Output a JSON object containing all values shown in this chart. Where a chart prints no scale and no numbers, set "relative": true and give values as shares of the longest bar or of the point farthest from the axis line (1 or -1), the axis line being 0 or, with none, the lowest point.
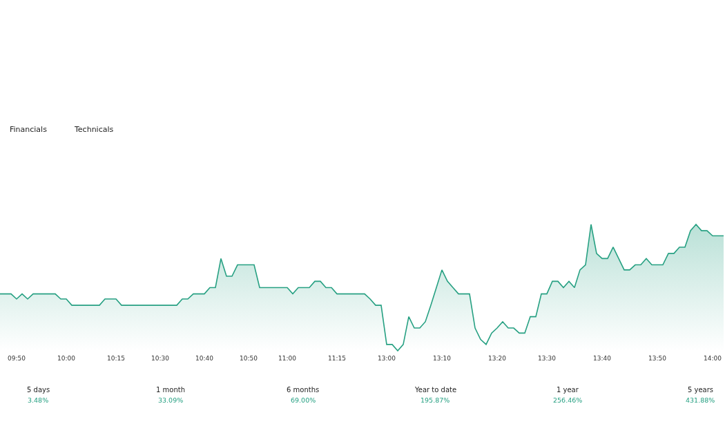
{
  "chart_data": {
    "type": "area",
    "relative": true,
    "color": "#26a082",
    "line_style": "solid",
    "tick_labels": "x",
    "categories": [
      null,
      null,
      null,
      "09:50",
      null,
      null,
      null,
      null,
      null,
      null,
      null,
      null,
      "10:00",
      null,
      null,
      null,
      null,
      null,
      null,
      null,
      null,
      "10:15",
      null,
      null,
      null,
      null,
      null,
      null,
      null,
      "10:30",
      null,
      null,
      null,
      null,
      null,
      null,
      null,
      "10:40",
      null,
      null,
      null,
      null,
      null,
      null,
      null,
      "10:50",
      null,
      null,
      null,
      null,
      null,
      null,
      "11:00",
      null,
      null,
      null,
      null,
      null,
      null,
      null,
      null,
      "11:15",
      null,
      null,
      null,
      null,
      null,
      null,
      null,
      null,
      "13:00",
      null,
      null,
      null,
      null,
      null,
      null,
      null,
      null,
      null,
      "13:10",
      null,
      null,
      null,
      null,
      null,
      null,
      null,
      null,
      null,
      "13:20",
      null,
      null,
      null,
      null,
      null,
      null,
      null,
      null,
      "13:30",
      null,
      null,
      null,
      null,
      null,
      null,
      null,
      null,
      null,
      "13:40",
      null,
      null,
      null,
      null,
      null,
      null,
      null,
      null,
      null,
      "13:50",
      null,
      null,
      null,
      null,
      null,
      null,
      null,
      null,
      null,
      "14:00",
      null,
      null
    ],
    "values": [
      0.45,
      0.45,
      0.45,
      0.41,
      0.45,
      0.41,
      0.45,
      0.45,
      0.45,
      0.45,
      0.45,
      0.41,
      0.41,
      0.36,
      0.36,
      0.36,
      0.36,
      0.36,
      0.36,
      0.41,
      0.41,
      0.41,
      0.36,
      0.36,
      0.36,
      0.36,
      0.36,
      0.36,
      0.36,
      0.36,
      0.36,
      0.36,
      0.36,
      0.41,
      0.41,
      0.45,
      0.45,
      0.45,
      0.5,
      0.5,
      0.73,
      0.59,
      0.59,
      0.68,
      0.68,
      0.68,
      0.68,
      0.5,
      0.5,
      0.5,
      0.5,
      0.5,
      0.5,
      0.45,
      0.5,
      0.5,
      0.5,
      0.55,
      0.55,
      0.5,
      0.5,
      0.45,
      0.45,
      0.45,
      0.45,
      0.45,
      0.45,
      0.41,
      0.36,
      0.36,
      0.05,
      0.05,
      0,
      0.05,
      0.27,
      0.18,
      0.18,
      0.23,
      0.36,
      0.5,
      0.64,
      0.55,
      0.5,
      0.45,
      0.45,
      0.45,
      0.18,
      0.09,
      0.05,
      0.14,
      0.18,
      0.23,
      0.18,
      0.18,
      0.14,
      0.14,
      0.27,
      0.27,
      0.45,
      0.45,
      0.55,
      0.55,
      0.5,
      0.55,
      0.5,
      0.64,
      0.68,
      1,
      0.77,
      0.73,
      0.73,
      0.82,
      0.73,
      0.64,
      0.64,
      0.68,
      0.68,
      0.73,
      0.68,
      0.68,
      0.68,
      0.77,
      0.77,
      0.82,
      0.82,
      0.95,
      1,
      0.95,
      0.95,
      0.91,
      0.91,
      0.91
    ],
    "annotations": [
      "Financials",
      "Technicals",
      "5 days",
      "3.48%",
      "1 month",
      "33.09%",
      "6 months",
      "69.00%",
      "Year to date",
      "195.87%",
      "1 year",
      "256.46%",
      "5 years",
      "431.88%"
    ]
  }
}
